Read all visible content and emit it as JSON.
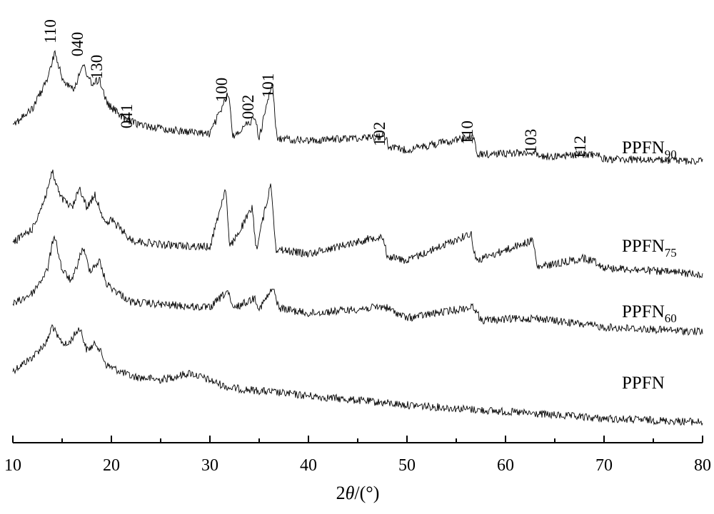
{
  "chart_data": {
    "type": "line",
    "title": "",
    "xlabel_prefix": "2",
    "xlabel_var": "θ",
    "xlabel_suffix": "/(°)",
    "ylabel": "",
    "xlim": [
      10,
      80
    ],
    "x_ticks": [
      10,
      20,
      30,
      40,
      50,
      60,
      70,
      80
    ],
    "grid": false,
    "legend": "none",
    "series": [
      {
        "name": "PPFN",
        "subscript": "",
        "points": [
          [
            10,
            0
          ],
          [
            12,
            12
          ],
          [
            13.5,
            26
          ],
          [
            14,
            40
          ],
          [
            14.6,
            28
          ],
          [
            15.5,
            22
          ],
          [
            16.8,
            38
          ],
          [
            17.5,
            18
          ],
          [
            18.5,
            24
          ],
          [
            19.5,
            5
          ],
          [
            22,
            -5
          ],
          [
            25,
            -8
          ],
          [
            28,
            -2
          ],
          [
            32,
            -15
          ],
          [
            40,
            -22
          ],
          [
            50,
            -30
          ],
          [
            60,
            -36
          ],
          [
            70,
            -42
          ],
          [
            80,
            -45
          ]
        ]
      },
      {
        "name": "PPFN",
        "subscript": "60",
        "points": [
          [
            10,
            0
          ],
          [
            12,
            10
          ],
          [
            13.5,
            30
          ],
          [
            14.2,
            62
          ],
          [
            15,
            30
          ],
          [
            16,
            20
          ],
          [
            17.1,
            50
          ],
          [
            17.8,
            30
          ],
          [
            18.8,
            38
          ],
          [
            19.5,
            18
          ],
          [
            22,
            2
          ],
          [
            25,
            0
          ],
          [
            30,
            -3
          ],
          [
            31.8,
            12
          ],
          [
            32.3,
            -4
          ],
          [
            34.6,
            6
          ],
          [
            35,
            -4
          ],
          [
            36.4,
            14
          ],
          [
            37,
            -3
          ],
          [
            40,
            -8
          ],
          [
            47.7,
            -2
          ],
          [
            50,
            -12
          ],
          [
            56.8,
            -2
          ],
          [
            57.5,
            -14
          ],
          [
            63,
            -12
          ],
          [
            70,
            -20
          ],
          [
            80,
            -24
          ]
        ]
      },
      {
        "name": "PPFN",
        "subscript": "75",
        "points": [
          [
            10,
            0
          ],
          [
            12,
            12
          ],
          [
            13.3,
            40
          ],
          [
            14,
            62
          ],
          [
            14.8,
            40
          ],
          [
            16,
            30
          ],
          [
            16.8,
            48
          ],
          [
            17.5,
            30
          ],
          [
            18.3,
            42
          ],
          [
            19.5,
            15
          ],
          [
            20,
            20
          ],
          [
            22,
            2
          ],
          [
            25,
            -2
          ],
          [
            30,
            -4
          ],
          [
            31.6,
            48
          ],
          [
            32,
            -5
          ],
          [
            34.3,
            30
          ],
          [
            34.7,
            -6
          ],
          [
            36.2,
            52
          ],
          [
            36.7,
            -6
          ],
          [
            40,
            -10
          ],
          [
            47.5,
            6
          ],
          [
            48,
            -12
          ],
          [
            50,
            -16
          ],
          [
            56.5,
            8
          ],
          [
            57,
            -16
          ],
          [
            62.8,
            2
          ],
          [
            63.2,
            -22
          ],
          [
            67.8,
            -14
          ],
          [
            69,
            -16
          ],
          [
            70,
            -22
          ],
          [
            80,
            -28
          ]
        ]
      },
      {
        "name": "PPFN",
        "subscript": "90",
        "points": [
          [
            10,
            0
          ],
          [
            12,
            14
          ],
          [
            13.5,
            40
          ],
          [
            14.3,
            64
          ],
          [
            15,
            40
          ],
          [
            16.2,
            32
          ],
          [
            17.2,
            52
          ],
          [
            18,
            35
          ],
          [
            18.8,
            40
          ],
          [
            19.6,
            18
          ],
          [
            21.5,
            4
          ],
          [
            23,
            0
          ],
          [
            25.5,
            -4
          ],
          [
            30,
            -8
          ],
          [
            31.9,
            28
          ],
          [
            32.3,
            -10
          ],
          [
            34.6,
            6
          ],
          [
            35,
            -12
          ],
          [
            36.3,
            38
          ],
          [
            36.8,
            -12
          ],
          [
            40,
            -14
          ],
          [
            47.8,
            -10
          ],
          [
            48.2,
            -20
          ],
          [
            50,
            -22
          ],
          [
            56.7,
            -10
          ],
          [
            57.1,
            -26
          ],
          [
            62.9,
            -24
          ],
          [
            63.3,
            -28
          ],
          [
            68,
            -26
          ],
          [
            69.2,
            -26
          ],
          [
            70,
            -30
          ],
          [
            80,
            -32
          ]
        ]
      }
    ],
    "peak_labels": [
      "110",
      "040",
      "130",
      "041",
      "100",
      "002",
      "101",
      "102",
      "110",
      "103",
      "112"
    ]
  }
}
